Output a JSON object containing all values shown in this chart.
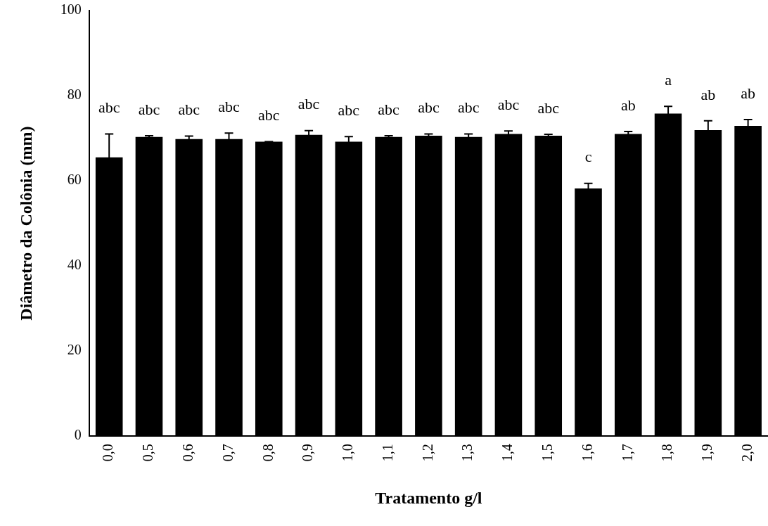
{
  "chart_data": {
    "type": "bar",
    "xlabel": "Tratamento g/l",
    "ylabel": "Diâmetro da Colônia (mm)",
    "categories": [
      "0,0",
      "0,5",
      "0,6",
      "0,7",
      "0,8",
      "0,9",
      "1,0",
      "1,1",
      "1,2",
      "1,3",
      "1,4",
      "1,5",
      "1,6",
      "1,7",
      "1,8",
      "1,9",
      "2,0"
    ],
    "values": [
      65.5,
      70.3,
      69.8,
      69.8,
      69.2,
      70.8,
      69.2,
      70.3,
      70.6,
      70.3,
      71,
      70.6,
      58.2,
      71,
      75.8,
      71.9,
      72.9
    ],
    "errors": [
      5.5,
      0.3,
      0.7,
      1.4,
      0,
      1,
      1.2,
      0.3,
      0.4,
      0.7,
      0.7,
      0.3,
      1.2,
      0.6,
      1.7,
      2.2,
      1.5
    ],
    "color": "#000000",
    "ylim": [
      0,
      100
    ],
    "yticks": [
      0,
      20,
      40,
      60,
      80,
      100
    ],
    "grid": false,
    "legend": false,
    "value_labels": [
      "abc",
      "abc",
      "abc",
      "abc",
      "abc",
      "abc",
      "abc",
      "abc",
      "abc",
      "abc",
      "abc",
      "abc",
      "c",
      "ab",
      "a",
      "ab",
      "ab"
    ]
  }
}
